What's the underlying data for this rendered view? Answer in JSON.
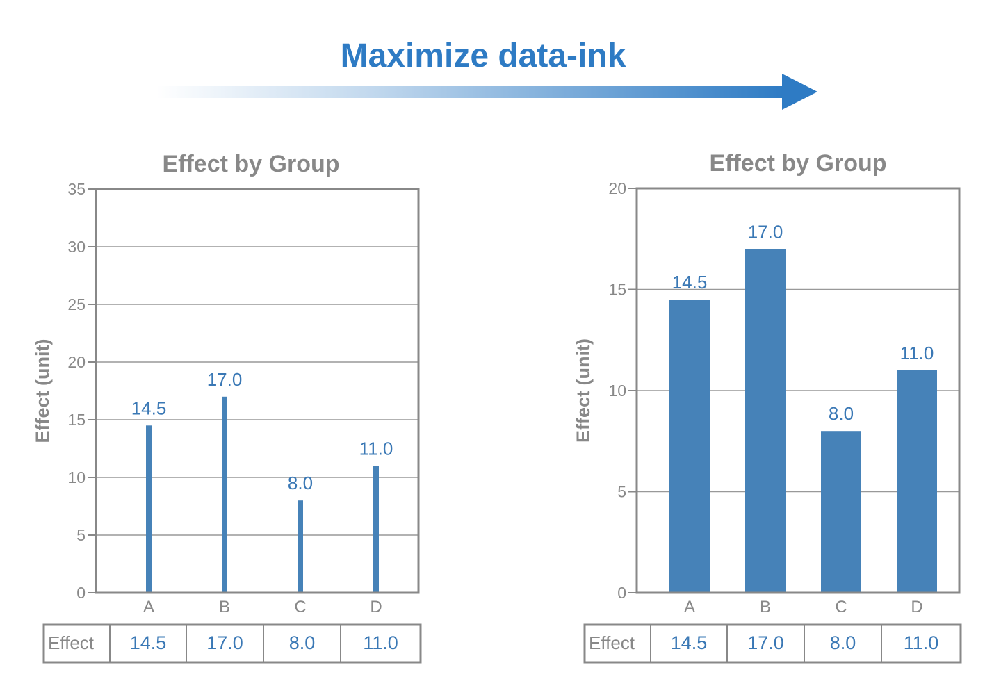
{
  "header": {
    "title": "Maximize data-ink",
    "arrow_icon": "right-arrow-gradient",
    "color": "#2e7bc4"
  },
  "colors": {
    "bar": "#4682b8",
    "label": "#3a78b5",
    "axis": "#888888",
    "grid": "#999999"
  },
  "chart_data": [
    {
      "type": "bar",
      "style": "thin-lines",
      "title": "Effect by Group",
      "ylabel": "Effect (unit)",
      "xlabel": "",
      "categories": [
        "A",
        "B",
        "C",
        "D"
      ],
      "values": [
        14.5,
        17.0,
        8.0,
        11.0
      ],
      "value_labels": [
        "14.5",
        "17.0",
        "8.0",
        "11.0"
      ],
      "ylim": [
        0,
        35
      ],
      "yticks": [
        0,
        5,
        10,
        15,
        20,
        25,
        30,
        35
      ],
      "grid": true,
      "table": {
        "row_label": "Effect",
        "cells": [
          "14.5",
          "17.0",
          "8.0",
          "11.0"
        ]
      }
    },
    {
      "type": "bar",
      "style": "wide-bars",
      "title": "Effect by Group",
      "ylabel": "Effect (unit)",
      "xlabel": "",
      "categories": [
        "A",
        "B",
        "C",
        "D"
      ],
      "values": [
        14.5,
        17.0,
        8.0,
        11.0
      ],
      "value_labels": [
        "14.5",
        "17.0",
        "8.0",
        "11.0"
      ],
      "ylim": [
        0,
        20
      ],
      "yticks": [
        0,
        5,
        10,
        15,
        20
      ],
      "grid": true,
      "table": {
        "row_label": "Effect",
        "cells": [
          "14.5",
          "17.0",
          "8.0",
          "11.0"
        ]
      }
    }
  ]
}
